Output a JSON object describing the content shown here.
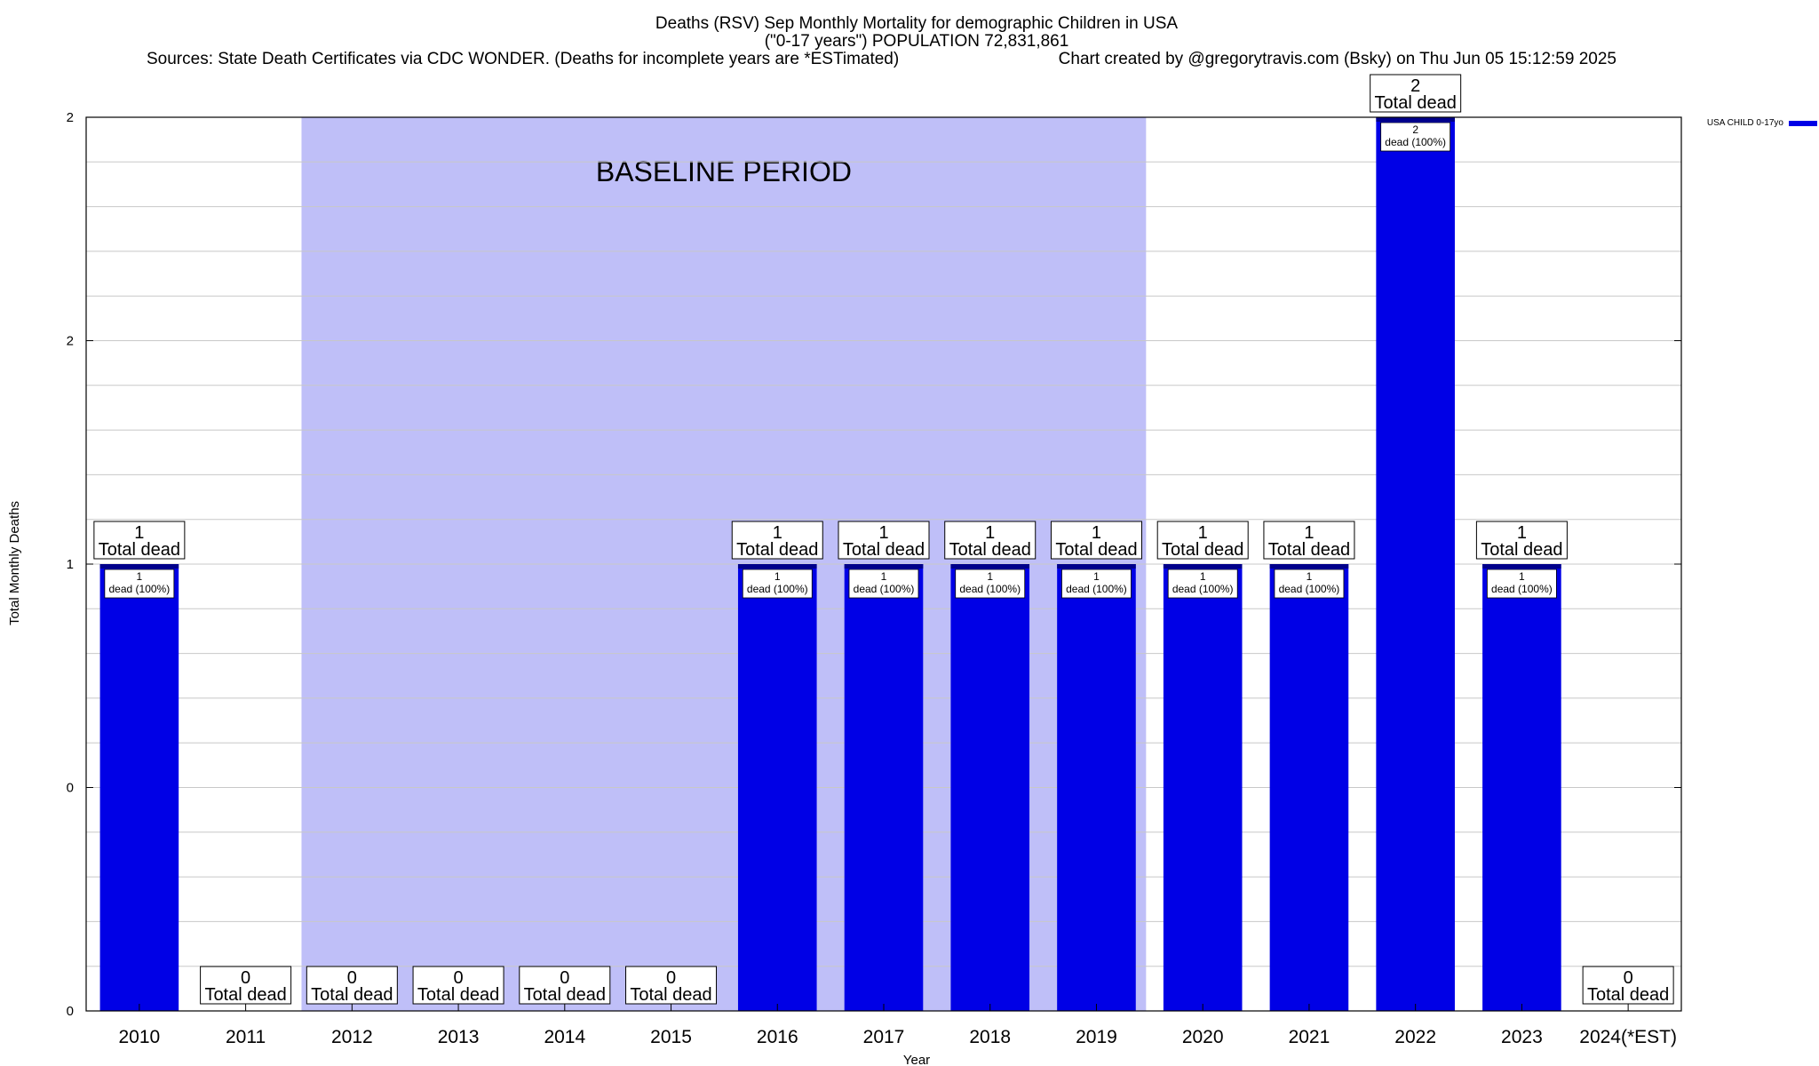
{
  "colors": {
    "bar": "#0000e6",
    "bar_top": "#00008b",
    "baseline_shade": "#bfbff8",
    "grid": "#c8c8c8",
    "frame": "#000000"
  },
  "chart_data": {
    "type": "bar",
    "title_lines": [
      "Deaths (RSV) Sep Monthly Mortality for demographic Children in USA",
      "(\"0-17 years\") POPULATION 72,831,861"
    ],
    "sources_text": "Sources: State Death Certificates via CDC WONDER. (Deaths for incomplete years are *ESTimated)",
    "credit_text": "Chart created by @gregorytravis.com (Bsky) on Thu Jun 05 15:12:59 2025",
    "xlabel": "Year",
    "ylabel": "Total Monthly Deaths",
    "ylim": [
      0,
      2
    ],
    "y_ticks": [
      {
        "value": 0,
        "label": "0"
      },
      {
        "value": 0.5,
        "label": "0"
      },
      {
        "value": 1,
        "label": "1"
      },
      {
        "value": 1.5,
        "label": "2"
      },
      {
        "value": 2,
        "label": "2"
      }
    ],
    "categories": [
      "2010",
      "2011",
      "2012",
      "2013",
      "2014",
      "2015",
      "2016",
      "2017",
      "2018",
      "2019",
      "2020",
      "2021",
      "2022",
      "2023",
      "2024(*EST)"
    ],
    "series": [
      {
        "name": "USA CHILD 0-17yo",
        "values": [
          1,
          0,
          0,
          0,
          0,
          0,
          1,
          1,
          1,
          1,
          1,
          1,
          2,
          1,
          0
        ]
      }
    ],
    "total_label_numbers": [
      "1",
      "0",
      "0",
      "0",
      "0",
      "0",
      "1",
      "1",
      "1",
      "1",
      "1",
      "1",
      "2",
      "1",
      "0"
    ],
    "total_label_suffix": "Total dead",
    "inner_label_numbers": [
      "1",
      "",
      "",
      "",
      "",
      "",
      "1",
      "1",
      "1",
      "1",
      "1",
      "1",
      "2",
      "1",
      ""
    ],
    "inner_label_suffix": "dead (100%)",
    "baseline_period": {
      "label": "BASELINE PERIOD",
      "start": "2012",
      "end": "2019"
    },
    "legend": {
      "position": "top-right",
      "entries": [
        "USA CHILD 0-17yo"
      ]
    },
    "grid": true
  }
}
